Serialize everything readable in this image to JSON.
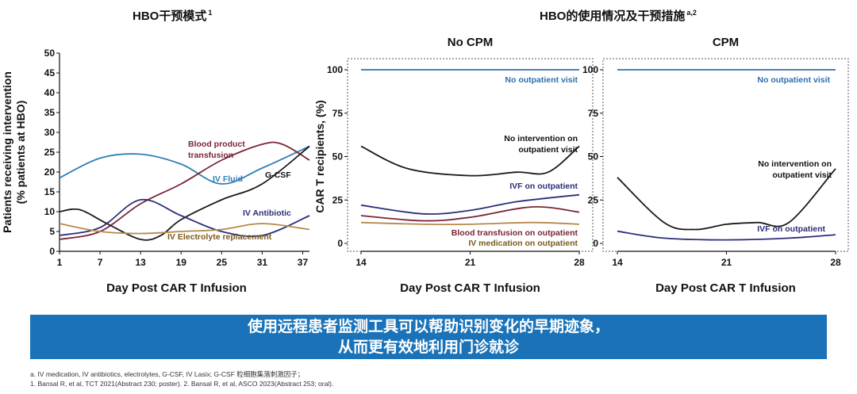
{
  "titles": {
    "left": "HBO干预模式",
    "left_sup": "1",
    "right": "HBO的使用情况及干预措施",
    "right_sup": "a,2"
  },
  "chart_data": [
    {
      "type": "line",
      "title": "",
      "xlabel": "Day Post CAR T Infusion",
      "ylabel": "Patients receiving intervention (% patients at HBO)",
      "xlim": [
        1,
        38
      ],
      "ylim": [
        0,
        50
      ],
      "xticks": [
        1,
        7,
        13,
        19,
        25,
        31,
        37
      ],
      "yticks": [
        0,
        5,
        10,
        15,
        20,
        25,
        30,
        35,
        40,
        45,
        50
      ],
      "series": [
        {
          "name": "IV Fluid",
          "color": "#2f7fb5",
          "x": [
            1,
            7,
            13,
            19,
            25,
            31,
            38
          ],
          "y": [
            18.5,
            23.5,
            24.5,
            22,
            17,
            21,
            26.5
          ]
        },
        {
          "name": "Blood product transfusion",
          "color": "#7a2536",
          "x": [
            1,
            7,
            13,
            19,
            25,
            31,
            34,
            38
          ],
          "y": [
            3,
            5,
            12,
            17,
            23,
            27,
            27,
            23
          ]
        },
        {
          "name": "G-CSF",
          "color": "#1a1a1a",
          "x": [
            1,
            4,
            8,
            13,
            16,
            19,
            25,
            31,
            38
          ],
          "y": [
            10,
            10.5,
            7,
            3,
            4,
            8,
            13,
            17,
            26.5
          ]
        },
        {
          "name": "IV Antibiotic",
          "color": "#2b2f7a",
          "x": [
            1,
            7,
            13,
            19,
            25,
            31,
            38
          ],
          "y": [
            4,
            6,
            13,
            9,
            5,
            4,
            9
          ]
        },
        {
          "name": "IV Electrolyte replacement",
          "color": "#b5894a",
          "x": [
            1,
            7,
            13,
            19,
            25,
            31,
            38
          ],
          "y": [
            7,
            5,
            4.5,
            5,
            5.5,
            7,
            5.5
          ]
        }
      ]
    },
    {
      "type": "line",
      "title": "No CPM",
      "xlabel": "Day Post CAR T Infusion",
      "ylabel": "CAR T recipients, (%)",
      "xlim": [
        14,
        28
      ],
      "ylim": [
        0,
        100
      ],
      "xticks": [
        14,
        21,
        28
      ],
      "yticks": [
        0,
        25,
        50,
        75,
        100
      ],
      "series": [
        {
          "name": "No outpatient visit",
          "color": "#2f6fae",
          "x": [
            14,
            28
          ],
          "y": [
            100,
            100
          ]
        },
        {
          "name": "No intervention on outpatient visit",
          "color": "#1a1a1a",
          "x": [
            14,
            17,
            21,
            24,
            26,
            28
          ],
          "y": [
            56,
            43,
            39,
            41,
            41,
            56
          ]
        },
        {
          "name": "IVF on outpatient",
          "color": "#2b2f7a",
          "x": [
            14,
            18,
            21,
            24,
            28
          ],
          "y": [
            22,
            17,
            19,
            24,
            28
          ]
        },
        {
          "name": "Blood transfusion on outpatient",
          "color": "#7a2536",
          "x": [
            14,
            18,
            21,
            25,
            28
          ],
          "y": [
            16,
            13,
            15,
            21,
            18
          ]
        },
        {
          "name": "IV medication on outpatient",
          "color": "#b5894a",
          "x": [
            14,
            18,
            21,
            25,
            28
          ],
          "y": [
            12,
            11,
            11,
            12,
            11
          ]
        }
      ]
    },
    {
      "type": "line",
      "title": "CPM",
      "xlabel": "Day Post CAR T Infusion",
      "ylabel": "",
      "xlim": [
        14,
        28
      ],
      "ylim": [
        0,
        100
      ],
      "xticks": [
        14,
        21,
        28
      ],
      "yticks": [
        0,
        25,
        50,
        75,
        100
      ],
      "series": [
        {
          "name": "No outpatient visit",
          "color": "#2f6fae",
          "x": [
            14,
            28
          ],
          "y": [
            100,
            100
          ]
        },
        {
          "name": "No intervention on outpatient visit",
          "color": "#1a1a1a",
          "x": [
            14,
            17,
            19,
            21,
            23,
            25,
            28
          ],
          "y": [
            38,
            12,
            8,
            11,
            12,
            12,
            43
          ]
        },
        {
          "name": "IVF on outpatient",
          "color": "#2b2f7a",
          "x": [
            14,
            17,
            21,
            25,
            28
          ],
          "y": [
            7,
            3,
            2,
            3,
            5
          ]
        }
      ]
    }
  ],
  "banner": {
    "line1": "使用远程患者监测工具可以帮助识别变化的早期迹象，",
    "line2": "从而更有效地利用门诊就诊"
  },
  "footnotes": {
    "a": "a. IV medication, IV antibiotics, electrolytes, G-CSF, IV Lasix; G-CSF 粒细胞集落刺激因子；",
    "refs": "1. Bansal R, et al, TCT 2021(Abstract 230; poster). 2. Bansal R, et al, ASCO  2023(Abstract 253; oral)."
  }
}
